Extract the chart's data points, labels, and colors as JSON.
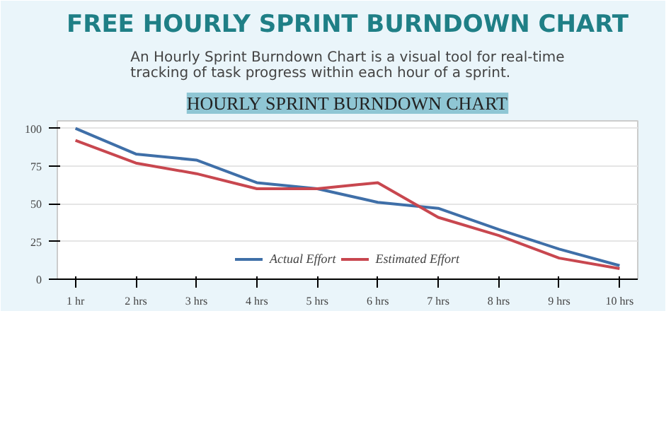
{
  "chart_data": {
    "type": "line",
    "title": "FREE HOURLY SPRINT BURNDOWN CHART",
    "subtitle": "An Hourly Sprint Burndown Chart is a visual tool for real-time tracking of task progress within each hour of a sprint.",
    "annotations": [
      "HOURLY SPRINT BURNDOWN CHART"
    ],
    "categories": [
      "1 hr",
      "2 hrs",
      "3 hrs",
      "4 hrs",
      "5 hrs",
      "6 hrs",
      "7 hrs",
      "8 hrs",
      "9 hrs",
      "10 hrs"
    ],
    "series": [
      {
        "name": "Actual Effort",
        "color": "#3f6fa8",
        "values": [
          100,
          83,
          79,
          64,
          60,
          51,
          47,
          33,
          20,
          9
        ]
      },
      {
        "name": "Estimated Effort",
        "color": "#c8474f",
        "values": [
          92,
          77,
          70,
          60,
          60,
          64,
          41,
          29,
          14,
          7
        ]
      }
    ],
    "ylim": [
      0,
      105
    ],
    "yticks": [
      0,
      25,
      50,
      75,
      100
    ],
    "grid": "y",
    "legend": "bottom",
    "marker": "none",
    "line_style": "solid"
  }
}
